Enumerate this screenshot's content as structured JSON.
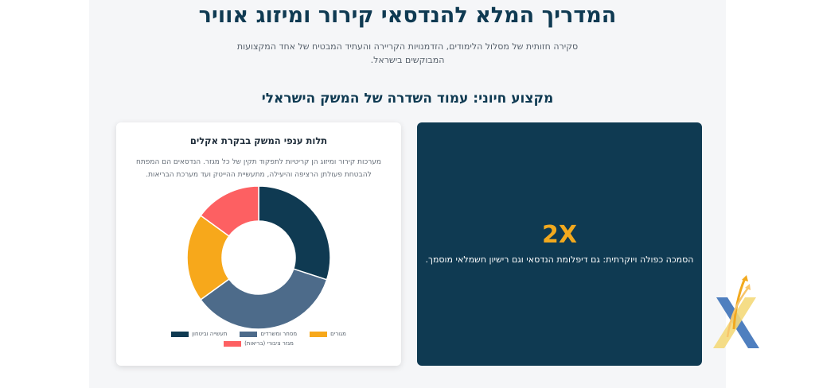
{
  "header": {
    "title": "המדריך המלא להנדסאי קירור ומיזוג אוויר",
    "subtitle": "סקירה חזותית של מסלול הלימודים, הזדמנויות הקריירה והעתיד המבטיח של אחד המקצועות המבוקשים בישראל."
  },
  "section": {
    "title": "מקצוע חיוני: עמוד השדרה של המשק הישראלי"
  },
  "chart_card": {
    "title": "תלות ענפי המשק בבקרת אקלים",
    "description": "מערכות קירור ומיזוג הן קריטיות לתפקוד תקין של כל מגזר. הנדסאים הם המפתח להבטחת פעולתן הרציפה והיעילה, מתעשיית ההייטק ועד מערכת הבריאות."
  },
  "chart_data": {
    "type": "pie",
    "title": "תלות ענפי המשק בבקרת אקלים",
    "donut": true,
    "categories": [
      "תעשייה וביטחון",
      "מסחר ומשרדים",
      "מגורים",
      "מגזר ציבורי (בריאות)"
    ],
    "values": [
      30,
      35,
      20,
      15
    ],
    "colors": [
      "#0f3a52",
      "#4d6b8a",
      "#f7a81b",
      "#fd6062"
    ],
    "legend_position": "bottom"
  },
  "stat_card": {
    "value": "2X",
    "description": "הסמכה כפולה ויוקרתית: גם דיפלומת הנדסאי וגם רישיון חשמלאי מוסמך."
  },
  "colors": {
    "primary": "#0f3a52",
    "accent": "#f2a91e",
    "background": "#f5f6f8"
  },
  "logo": {
    "icon": "brand-x-arrows-icon"
  }
}
